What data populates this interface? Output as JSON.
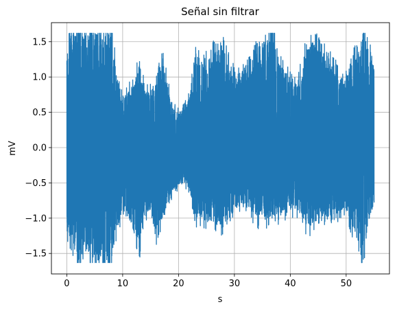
{
  "chart_data": {
    "type": "line",
    "title": "Señal sin filtrar",
    "xlabel": "s",
    "ylabel": "mV",
    "xlim": [
      -2.75,
      57.75
    ],
    "ylim": [
      -1.79,
      1.77
    ],
    "xticks": [
      0,
      10,
      20,
      30,
      40,
      50
    ],
    "xtick_labels": [
      "0",
      "10",
      "20",
      "30",
      "40",
      "50"
    ],
    "yticks": [
      -1.5,
      -1.0,
      -0.5,
      0.0,
      0.5,
      1.0,
      1.5
    ],
    "ytick_labels": [
      "−1.5",
      "−1.0",
      "−0.5",
      "0.0",
      "0.5",
      "1.0",
      "1.5"
    ],
    "grid": true,
    "series_color": "#1f77b4",
    "x_range": [
      0,
      55
    ],
    "clip": [
      -1.63,
      1.62
    ],
    "envelope": {
      "t": [
        0,
        1,
        2,
        3,
        4,
        5,
        6,
        7,
        8,
        9,
        10,
        11,
        12,
        13,
        14,
        15,
        16,
        17,
        18,
        19,
        20,
        21,
        22,
        23,
        24,
        25,
        26,
        27,
        28,
        29,
        30,
        31,
        32,
        33,
        34,
        35,
        36,
        37,
        38,
        39,
        40,
        41,
        42,
        43,
        44,
        45,
        46,
        47,
        48,
        49,
        50,
        51,
        52,
        53,
        54,
        55
      ],
      "upper": [
        1.62,
        1.62,
        1.62,
        1.62,
        1.62,
        1.62,
        1.62,
        1.62,
        1.62,
        1.0,
        0.7,
        0.8,
        0.9,
        1.2,
        0.8,
        0.8,
        0.9,
        1.25,
        0.9,
        0.55,
        0.5,
        0.55,
        0.7,
        1.4,
        1.1,
        1.2,
        1.3,
        1.4,
        1.4,
        1.2,
        1.0,
        1.0,
        1.2,
        1.1,
        1.4,
        1.5,
        1.5,
        1.62,
        1.2,
        1.1,
        1.0,
        0.9,
        1.1,
        1.4,
        1.5,
        1.4,
        1.3,
        1.2,
        1.1,
        1.0,
        0.95,
        1.2,
        1.3,
        1.62,
        1.4,
        1.1
      ],
      "lower": [
        -1.25,
        -1.3,
        -1.63,
        -1.6,
        -1.5,
        -1.63,
        -1.63,
        -1.63,
        -1.5,
        -1.2,
        -0.8,
        -1.0,
        -1.2,
        -1.4,
        -0.9,
        -0.9,
        -1.2,
        -1.0,
        -0.8,
        -0.6,
        -0.55,
        -0.5,
        -0.6,
        -1.0,
        -1.0,
        -1.05,
        -1.1,
        -1.1,
        -1.1,
        -1.0,
        -0.9,
        -0.8,
        -0.8,
        -0.9,
        -1.0,
        -1.0,
        -1.0,
        -1.0,
        -0.95,
        -0.9,
        -0.9,
        -0.9,
        -1.0,
        -1.1,
        -1.1,
        -1.1,
        -1.0,
        -1.0,
        -0.95,
        -0.9,
        -0.85,
        -1.1,
        -1.3,
        -1.63,
        -1.1,
        -0.8
      ]
    }
  }
}
